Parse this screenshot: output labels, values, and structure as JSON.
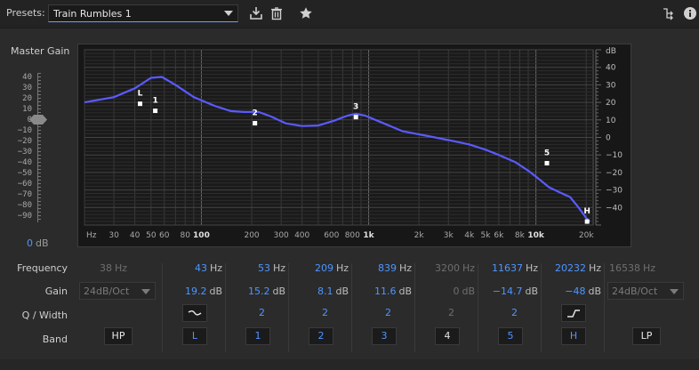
{
  "presets": {
    "label": "Presets:",
    "value": "Train Rumbles 1"
  },
  "toolbar": {
    "icons": [
      "save-preset-icon",
      "delete-preset-icon",
      "favorite-star-icon",
      "routing-icon",
      "info-icon"
    ]
  },
  "master_gain": {
    "label": "Master Gain",
    "scale": [
      "40",
      "30",
      "20",
      "10",
      "0",
      "−10",
      "−20",
      "−30",
      "−40",
      "−50",
      "−60",
      "−70",
      "−80",
      "−90"
    ],
    "value": "0",
    "unit": "dB"
  },
  "graph": {
    "x_ticks": [
      "Hz",
      "30",
      "40",
      "50",
      "60",
      "80",
      "100",
      "200",
      "300",
      "400",
      "600",
      "800",
      "1k",
      "2k",
      "3k",
      "4k",
      "5k",
      "6k",
      "8k",
      "10k",
      "20k"
    ],
    "y_unit": "dB",
    "y_ticks": [
      "40",
      "30",
      "20",
      "10",
      "0",
      "−10",
      "−20",
      "−30",
      "−40"
    ],
    "markers": [
      {
        "label": "L",
        "freq": 43,
        "gain": 19.2
      },
      {
        "label": "1",
        "freq": 53,
        "gain": 15.2
      },
      {
        "label": "2",
        "freq": 209,
        "gain": 8.1
      },
      {
        "label": "3",
        "freq": 839,
        "gain": 11.6
      },
      {
        "label": "5",
        "freq": 11637,
        "gain": -14.7
      },
      {
        "label": "H",
        "freq": 20232,
        "gain": -48
      }
    ]
  },
  "rows": {
    "frequency": "Frequency",
    "gain": "Gain",
    "q_width": "Q / Width",
    "band": "Band"
  },
  "bands": [
    {
      "id": "HP",
      "freq": "38",
      "freq_unit": "Hz",
      "gain": "24dB/Oct",
      "q": "",
      "band": "HP",
      "enabled": false
    },
    {
      "id": "L",
      "freq": "43",
      "freq_unit": "Hz",
      "gain": "19.2",
      "gain_unit": "dB",
      "q": "",
      "band": "L",
      "enabled": true
    },
    {
      "id": "1",
      "freq": "53",
      "freq_unit": "Hz",
      "gain": "15.2",
      "gain_unit": "dB",
      "q": "2",
      "band": "1",
      "enabled": true
    },
    {
      "id": "2",
      "freq": "209",
      "freq_unit": "Hz",
      "gain": "8.1",
      "gain_unit": "dB",
      "q": "2",
      "band": "2",
      "enabled": true
    },
    {
      "id": "3",
      "freq": "839",
      "freq_unit": "Hz",
      "gain": "11.6",
      "gain_unit": "dB",
      "q": "2",
      "band": "3",
      "enabled": true
    },
    {
      "id": "4",
      "freq": "3200",
      "freq_unit": "Hz",
      "gain": "0",
      "gain_unit": "dB",
      "q": "2",
      "band": "4",
      "enabled": false
    },
    {
      "id": "5",
      "freq": "11637",
      "freq_unit": "Hz",
      "gain": "−14.7",
      "gain_unit": "dB",
      "q": "2",
      "band": "5",
      "enabled": true
    },
    {
      "id": "H",
      "freq": "20232",
      "freq_unit": "Hz",
      "gain": "−48",
      "gain_unit": "dB",
      "q": "",
      "band": "H",
      "enabled": true
    },
    {
      "id": "LP",
      "freq": "16538",
      "freq_unit": "Hz",
      "gain": "24dB/Oct",
      "q": "",
      "band": "LP",
      "enabled": false
    }
  ],
  "colors": {
    "accent": "#4e95ff",
    "curve": "#5a5aff",
    "marker": "#ffffff",
    "disabled": "#6e6e6e"
  }
}
